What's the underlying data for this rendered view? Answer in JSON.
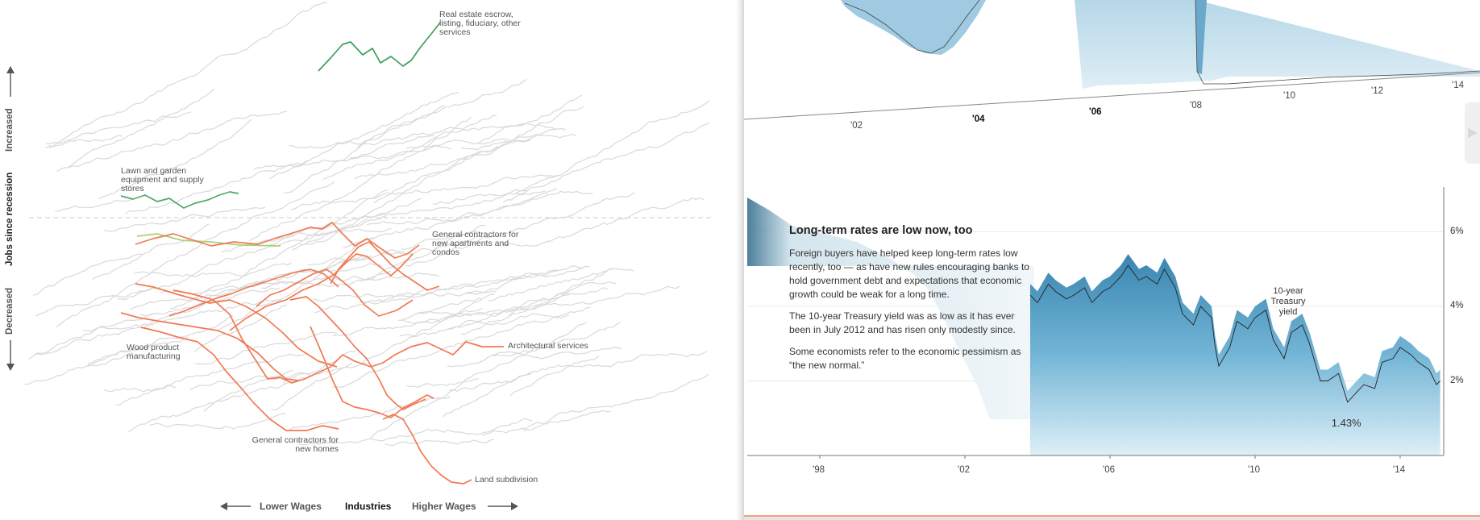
{
  "left_panel": {
    "axis_title": "Jobs since recession",
    "axis_up": "Increased",
    "axis_down": "Decreased",
    "bottom_left": "Lower Wages",
    "bottom_center": "Industries",
    "bottom_right": "Higher Wages",
    "labels": {
      "real_estate": [
        "Real estate escrow,",
        "listing, fiduciary, other",
        "services"
      ],
      "lawn": [
        "Lawn and garden",
        "equipment and supply",
        "stores"
      ],
      "gen_contractors_apt": [
        "General contractors for",
        "new apartments and",
        "condos"
      ],
      "wood": [
        "Wood product",
        "manufacturing"
      ],
      "architectural": "Architectural services",
      "gen_contractors_homes": [
        "General contractors for",
        "new homes"
      ],
      "land": "Land subdivision"
    },
    "colors": {
      "increase": "#3d9e5c",
      "increase_light": "#7fc17f",
      "decrease": "#f07a53",
      "background_lines": "#d9d9d9"
    }
  },
  "right_panel": {
    "top_years": [
      "'02",
      "'04",
      "'06",
      "'08",
      "'10",
      "'12",
      "'14"
    ],
    "story": {
      "heading": "Long-term rates are low now, too",
      "paragraphs": [
        "Foreign buyers have helped keep long-term rates low recently, too — as have new rules encouraging banks to hold government debt and expectations that economic growth could be weak for a long time.",
        "The 10-year Treasury yield was as low as it has ever been in July 2012 and has risen only modestly since.",
        "Some economists refer to the economic pessimism as “the new normal.”"
      ]
    },
    "series_label": [
      "10-year",
      "Treasury",
      "yield"
    ],
    "min_label": "1.43%",
    "colors": {
      "area": "#5fa6c9",
      "area_light": "#a9cfe2",
      "line": "#222222",
      "dark": "#1f5f82"
    }
  },
  "chart_data": [
    {
      "type": "line",
      "title": "",
      "ylabel": "Jobs since recession",
      "xlabel": "Lower Wages — Industries — Higher Wages",
      "highlighted_series": [
        {
          "name": "Real estate escrow, listing, fiduciary, other services",
          "direction": "increased"
        },
        {
          "name": "Lawn and garden equipment and supply stores",
          "direction": "increased"
        },
        {
          "name": "General contractors for new apartments and condos",
          "direction": "decreased"
        },
        {
          "name": "Wood product manufacturing",
          "direction": "decreased"
        },
        {
          "name": "Architectural services",
          "direction": "decreased"
        },
        {
          "name": "General contractors for new homes",
          "direction": "decreased"
        },
        {
          "name": "Land subdivision",
          "direction": "decreased"
        }
      ]
    },
    {
      "type": "area",
      "title": "Long-term rates are low now, too",
      "series_name": "10-year Treasury yield",
      "x_ticks": [
        "'98",
        "'02",
        "'06",
        "'10",
        "'14"
      ],
      "y_ticks": [
        "2%",
        "4%",
        "6%"
      ],
      "ylim": [
        0,
        7.2
      ],
      "xlim": [
        1996,
        2015.2
      ],
      "annotation": {
        "text": "1.43%",
        "x": 2012.55,
        "y": 1.43
      },
      "series": [
        {
          "name": "10-year Treasury yield",
          "x": [
            2003.8,
            2004.0,
            2004.3,
            2004.5,
            2004.8,
            2005.0,
            2005.3,
            2005.5,
            2005.8,
            2006.0,
            2006.3,
            2006.5,
            2006.8,
            2007.0,
            2007.3,
            2007.5,
            2007.8,
            2008.0,
            2008.3,
            2008.5,
            2008.8,
            2008.9,
            2009.0,
            2009.3,
            2009.5,
            2009.8,
            2010.0,
            2010.3,
            2010.5,
            2010.8,
            2011.0,
            2011.3,
            2011.5,
            2011.8,
            2012.0,
            2012.3,
            2012.55,
            2012.8,
            2013.0,
            2013.3,
            2013.5,
            2013.8,
            2014.0,
            2014.3,
            2014.5,
            2014.8,
            2015.0,
            2015.1
          ],
          "y": [
            4.3,
            4.1,
            4.6,
            4.4,
            4.2,
            4.3,
            4.5,
            4.1,
            4.4,
            4.5,
            4.8,
            5.1,
            4.7,
            4.8,
            4.6,
            5.0,
            4.5,
            3.8,
            3.5,
            4.0,
            3.7,
            2.9,
            2.4,
            2.9,
            3.6,
            3.4,
            3.7,
            3.9,
            3.1,
            2.6,
            3.3,
            3.5,
            3.0,
            2.0,
            2.0,
            2.2,
            1.43,
            1.7,
            1.9,
            1.8,
            2.5,
            2.6,
            2.9,
            2.7,
            2.5,
            2.3,
            1.9,
            2.0
          ]
        }
      ]
    }
  ]
}
